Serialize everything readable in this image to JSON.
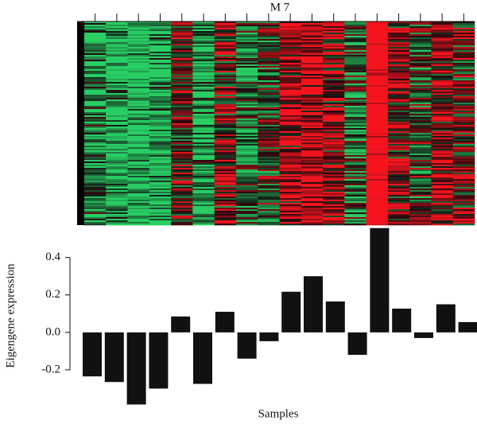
{
  "chart_data": {
    "type": "bar",
    "title": "M 7",
    "ylabel": "Eigengene expression",
    "xlabel": "Samples",
    "values": [
      -0.235,
      -0.265,
      -0.385,
      -0.3,
      0.085,
      -0.275,
      0.11,
      -0.14,
      -0.047,
      0.217,
      0.3,
      0.165,
      -0.12,
      0.557,
      0.127,
      -0.03,
      0.15,
      0.055
    ],
    "color": "#111111",
    "ylim": [
      -0.4,
      0.56
    ],
    "yticks": [
      0.4,
      0.2,
      {
        "value": 0,
        "label": "0.0"
      },
      -0.2
    ]
  }
}
